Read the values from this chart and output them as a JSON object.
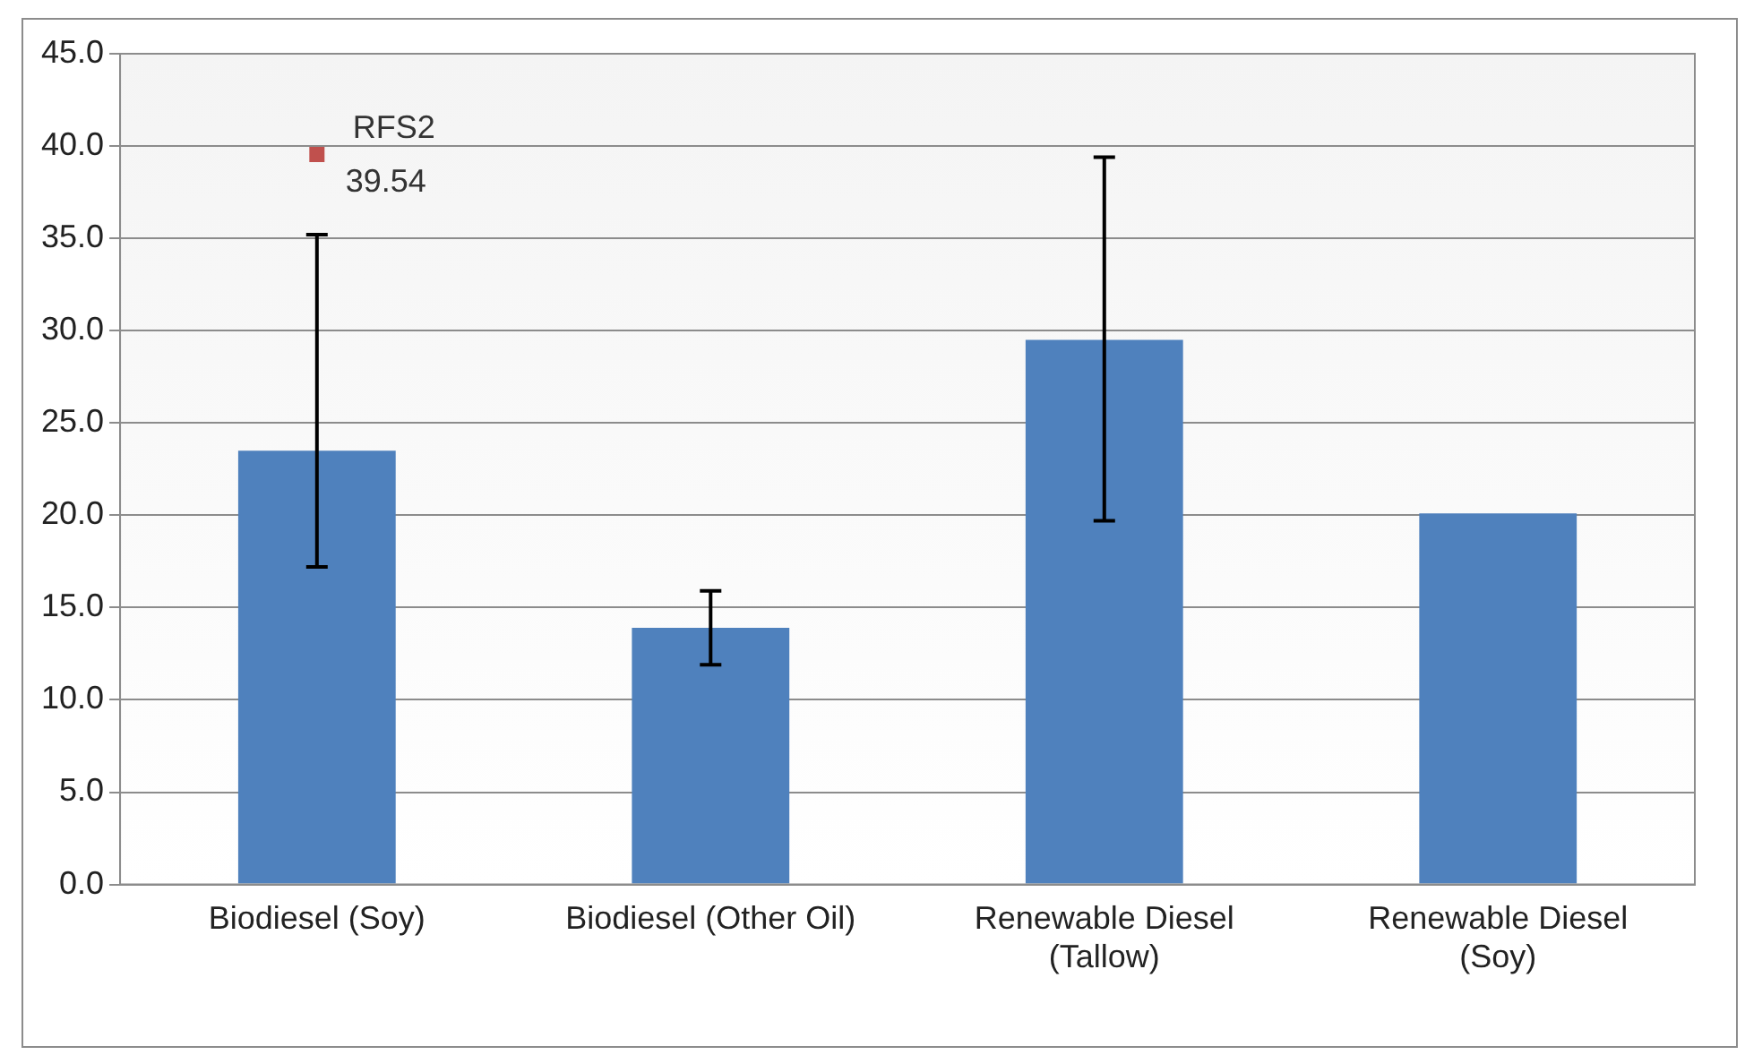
{
  "chart_data": {
    "type": "bar",
    "categories": [
      "Biodiesel (Soy)",
      "Biodiesel (Other Oil)",
      "Renewable Diesel (Tallow)",
      "Renewable Diesel (Soy)"
    ],
    "series": [
      {
        "color": "#4f81bd",
        "values": [
          23.5,
          13.9,
          29.5,
          20.1
        ],
        "errors": [
          [
            17.2,
            35.2
          ],
          [
            11.9,
            15.9
          ],
          [
            19.7,
            39.4
          ],
          null
        ]
      },
      {
        "type": "scatter",
        "name": "RFS2",
        "color": "#c0504d",
        "x": [
          "Biodiesel (Soy)"
        ],
        "values": [
          39.54
        ],
        "value_labels": [
          "39.54"
        ]
      }
    ],
    "ylim": [
      0,
      45
    ],
    "yticks": [
      {
        "value": 0,
        "label": "0.0"
      },
      {
        "value": 5,
        "label": "5.0"
      },
      {
        "value": 10,
        "label": "10.0"
      },
      {
        "value": 15,
        "label": "15.0"
      },
      {
        "value": 20,
        "label": "20.0"
      },
      {
        "value": 25,
        "label": "25.0"
      },
      {
        "value": 30,
        "label": "30.0"
      },
      {
        "value": 35,
        "label": "35.0"
      },
      {
        "value": 40,
        "label": "40.0"
      },
      {
        "value": 45,
        "label": "45.0"
      }
    ],
    "grid": "y",
    "legend": false
  }
}
